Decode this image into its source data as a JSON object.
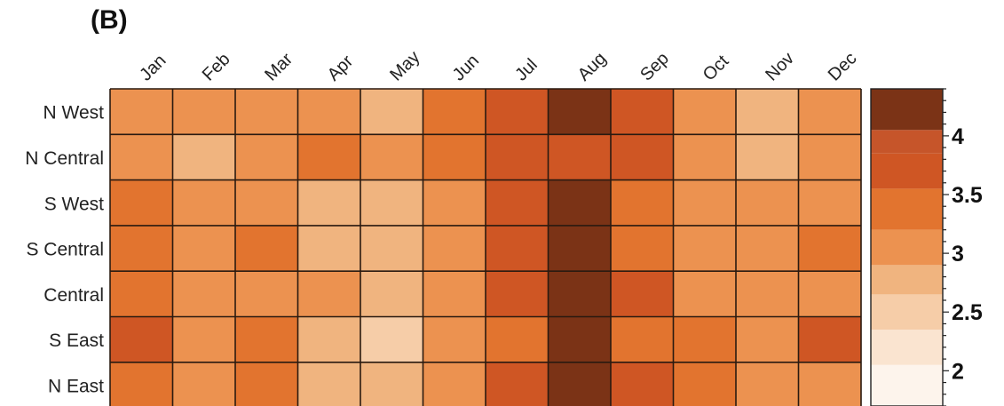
{
  "panel_label": "(B)",
  "chart_data": {
    "type": "heatmap",
    "categories": [
      "Jan",
      "Feb",
      "Mar",
      "Apr",
      "May",
      "Jun",
      "Jul",
      "Aug",
      "Sep",
      "Oct",
      "Nov",
      "Dec"
    ],
    "rows": [
      "N West",
      "N Central",
      "S West",
      "S Central",
      "Central",
      "S East",
      "N East"
    ],
    "values": [
      [
        3.15,
        3.15,
        3.15,
        3.05,
        2.75,
        3.45,
        3.7,
        4.3,
        3.7,
        3.05,
        2.75,
        3.15
      ],
      [
        3.05,
        2.65,
        3.05,
        3.45,
        3.15,
        3.45,
        3.7,
        3.7,
        3.7,
        3.05,
        2.75,
        3.15
      ],
      [
        3.45,
        3.05,
        3.05,
        2.75,
        2.75,
        3.05,
        3.7,
        4.3,
        3.4,
        3.05,
        3.05,
        3.05
      ],
      [
        3.45,
        3.05,
        3.4,
        2.75,
        2.75,
        3.05,
        3.7,
        4.3,
        3.4,
        3.05,
        3.05,
        3.45
      ],
      [
        3.45,
        3.05,
        3.05,
        3.05,
        2.75,
        3.05,
        3.7,
        4.3,
        3.7,
        3.05,
        3.05,
        3.05
      ],
      [
        3.7,
        3.05,
        3.4,
        2.75,
        2.45,
        3.05,
        3.45,
        4.3,
        3.4,
        3.4,
        3.05,
        3.7
      ],
      [
        3.45,
        3.05,
        3.45,
        2.75,
        2.75,
        3.05,
        3.7,
        4.3,
        3.7,
        3.4,
        3.05,
        3.05
      ]
    ],
    "colorbar": {
      "ticks": [
        "2",
        "2.5",
        "3",
        "3.5",
        "4"
      ],
      "range": [
        1.7,
        4.4
      ],
      "bins": [
        {
          "from": 1.7,
          "to": 2.05,
          "color": "#fdf4ec"
        },
        {
          "from": 2.05,
          "to": 2.35,
          "color": "#fae4d0"
        },
        {
          "from": 2.35,
          "to": 2.65,
          "color": "#f6cda8"
        },
        {
          "from": 2.65,
          "to": 2.9,
          "color": "#f0b47f"
        },
        {
          "from": 2.9,
          "to": 3.2,
          "color": "#ec9250"
        },
        {
          "from": 3.2,
          "to": 3.55,
          "color": "#e2742f"
        },
        {
          "from": 3.55,
          "to": 3.85,
          "color": "#cf5624"
        },
        {
          "from": 3.85,
          "to": 4.05,
          "color": "#c6552a"
        },
        {
          "from": 4.05,
          "to": 4.4,
          "color": "#7b3316"
        }
      ]
    }
  }
}
